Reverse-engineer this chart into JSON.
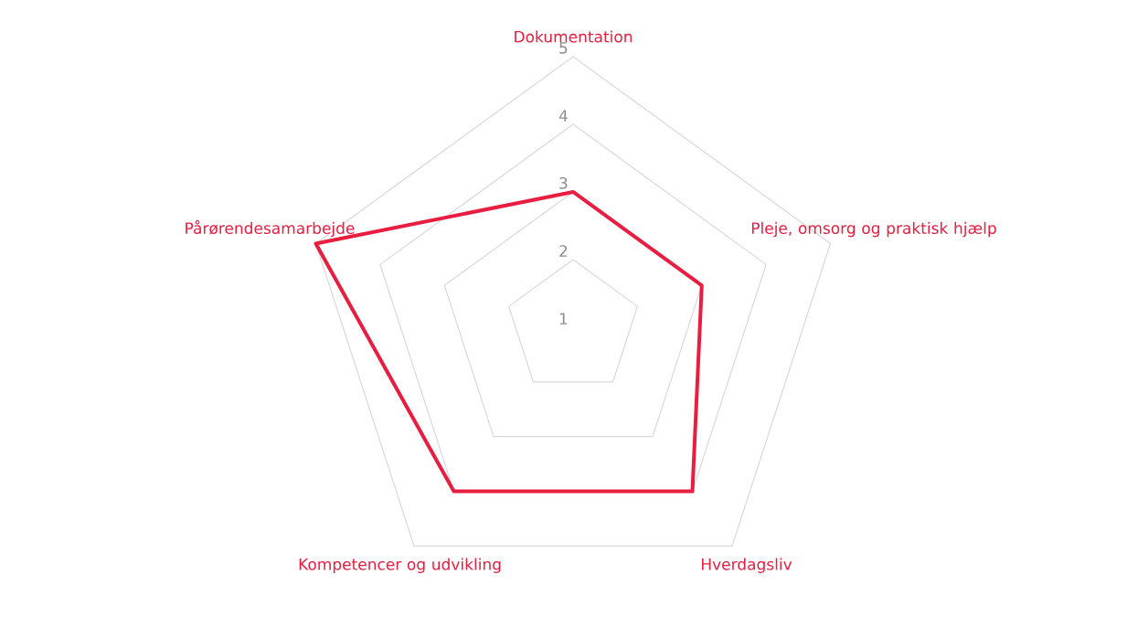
{
  "chart_data": {
    "type": "radar",
    "categories": [
      "Dokumentation",
      "Pleje, omsorg og praktisk hjælp",
      "Hverdagsliv",
      "Kompetencer og udvikling",
      "Pårørendesamarbejde"
    ],
    "series": [
      {
        "color": "#e81d3f",
        "values": [
          3,
          3,
          4,
          4,
          5
        ]
      }
    ],
    "ylim": [
      1,
      5
    ],
    "yticks": [
      1,
      2,
      3,
      4,
      5
    ],
    "grid": true
  }
}
